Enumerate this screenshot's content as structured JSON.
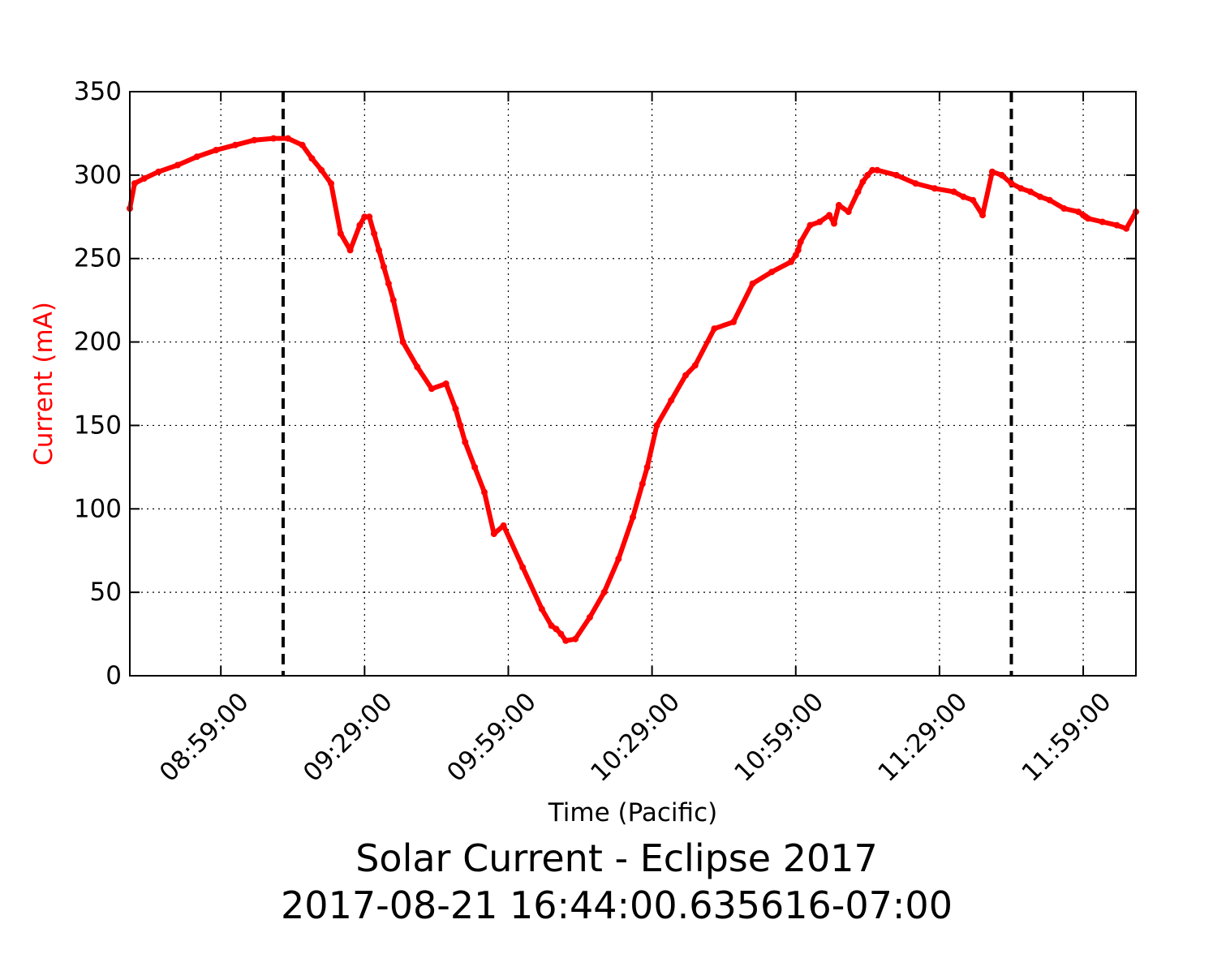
{
  "chart_data": {
    "type": "line",
    "title": "Solar Current - Eclipse 2017",
    "subtitle": "2017-08-21 16:44:00.635616-07:00",
    "xlabel": "Time (Pacific)",
    "ylabel": "Current (mA)",
    "ylim": [
      0,
      350
    ],
    "xlim": [
      "08:40:00",
      "12:10:00"
    ],
    "x_ticks": [
      "08:59:00",
      "09:29:00",
      "09:59:00",
      "10:29:00",
      "10:59:00",
      "11:29:00",
      "11:59:00"
    ],
    "y_ticks": [
      0,
      50,
      100,
      150,
      200,
      250,
      300,
      350
    ],
    "grid": true,
    "colors": {
      "series": "#ff0000",
      "ylabel": "#ff0000",
      "markers": "#000000"
    },
    "vertical_markers": [
      "09:12:00",
      "11:44:00"
    ],
    "series": [
      {
        "x": [
          "08:40:00",
          "08:41:00",
          "08:43:00",
          "08:46:00",
          "08:50:00",
          "08:54:00",
          "08:58:00",
          "09:02:00",
          "09:06:00",
          "09:10:00",
          "09:13:00",
          "09:16:00",
          "09:18:00",
          "09:20:00",
          "09:22:00",
          "09:24:00",
          "09:26:00",
          "09:28:00",
          "09:29:00",
          "09:30:00",
          "09:31:00",
          "09:32:00",
          "09:33:00",
          "09:34:00",
          "09:35:00",
          "09:37:00",
          "09:40:00",
          "09:43:00",
          "09:46:00",
          "09:48:00",
          "09:49:00",
          "09:50:00",
          "09:52:00",
          "09:54:00",
          "09:56:00",
          "09:58:00",
          "10:02:00",
          "10:06:00",
          "10:08:00",
          "10:09:00",
          "10:10:00",
          "10:11:00",
          "10:13:00",
          "10:16:00",
          "10:19:00",
          "10:22:00",
          "10:25:00",
          "10:27:00",
          "10:28:00",
          "10:30:00",
          "10:33:00",
          "10:36:00",
          "10:38:00",
          "10:42:00",
          "10:46:00",
          "10:50:00",
          "10:54:00",
          "10:58:00",
          "10:59:00",
          "10:59:30",
          "11:00:00",
          "11:02:00",
          "11:04:00",
          "11:06:00",
          "11:07:00",
          "11:08:00",
          "11:10:00",
          "11:12:00",
          "11:13:00",
          "11:14:00",
          "11:15:00",
          "11:16:00",
          "11:20:00",
          "11:24:00",
          "11:28:00",
          "11:32:00",
          "11:34:00",
          "11:36:00",
          "11:38:00",
          "11:40:00",
          "11:42:00",
          "11:44:00",
          "11:46:00",
          "11:48:00",
          "11:50:00",
          "11:52:00",
          "11:55:00",
          "11:58:00",
          "11:59:00",
          "11:59:30",
          "12:00:00",
          "12:03:00",
          "12:06:00",
          "12:08:00",
          "12:10:00"
        ],
        "y": [
          280,
          295,
          298,
          302,
          306,
          311,
          315,
          318,
          321,
          322,
          322,
          318,
          310,
          303,
          295,
          265,
          255,
          270,
          275,
          275,
          265,
          255,
          245,
          235,
          225,
          200,
          185,
          172,
          175,
          160,
          150,
          140,
          125,
          110,
          85,
          90,
          65,
          40,
          30,
          28,
          25,
          21,
          22,
          35,
          50,
          70,
          95,
          115,
          125,
          150,
          165,
          180,
          186,
          208,
          212,
          235,
          242,
          248,
          252,
          255,
          260,
          270,
          272,
          276,
          271,
          282,
          278,
          290,
          296,
          300,
          303,
          303,
          300,
          295,
          292,
          290,
          287,
          285,
          276,
          302,
          300,
          295,
          292,
          290,
          287,
          285,
          280,
          278,
          276,
          275,
          274,
          272,
          270,
          268,
          278
        ]
      }
    ]
  }
}
